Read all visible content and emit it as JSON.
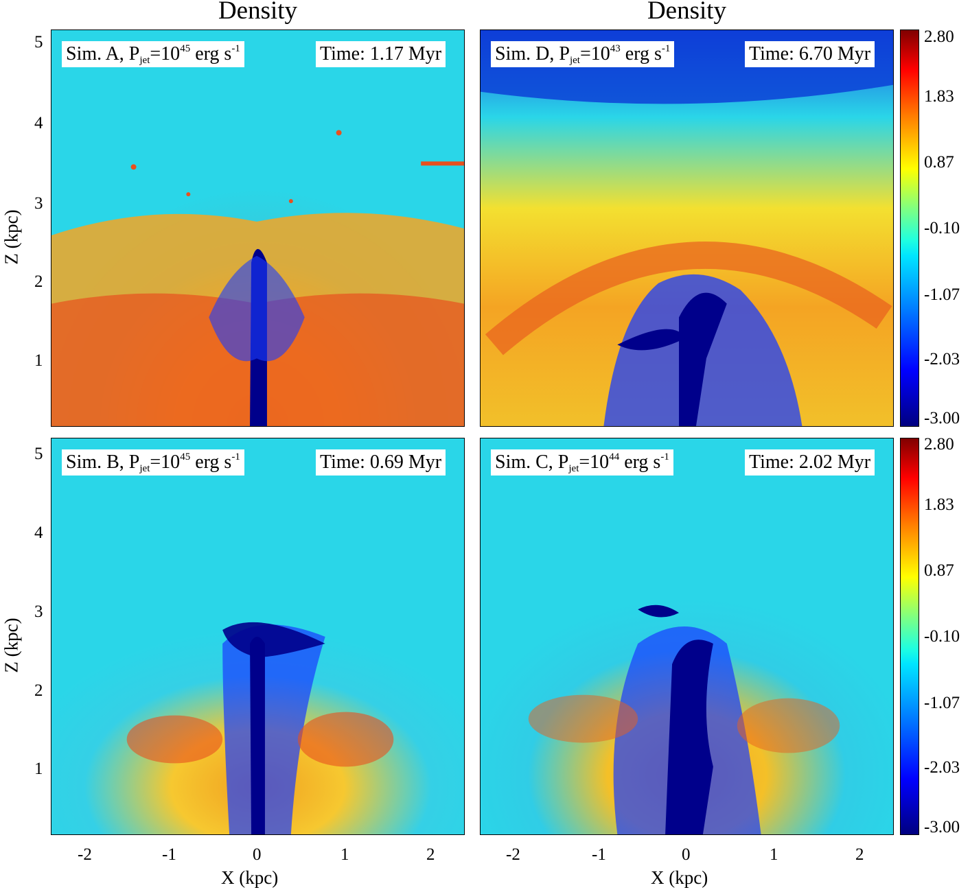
{
  "figure": {
    "column_titles": [
      "Density",
      "Density"
    ],
    "panels": [
      {
        "id": "A",
        "sim_prefix": "Sim. A, P",
        "sim_sub": "jet",
        "sim_mid": "=10",
        "sim_sup": "45",
        "sim_unit": " erg s",
        "sim_unit_sup": "-1",
        "time": "Time: 1.17 Myr"
      },
      {
        "id": "D",
        "sim_prefix": "Sim. D, P",
        "sim_sub": "jet",
        "sim_mid": "=10",
        "sim_sup": "43",
        "sim_unit": " erg s",
        "sim_unit_sup": "-1",
        "time": "Time: 6.70 Myr"
      },
      {
        "id": "B",
        "sim_prefix": "Sim. B, P",
        "sim_sub": "jet",
        "sim_mid": "=10",
        "sim_sup": "45",
        "sim_unit": " erg s",
        "sim_unit_sup": "-1",
        "time": "Time: 0.69 Myr"
      },
      {
        "id": "C",
        "sim_prefix": "Sim. C, P",
        "sim_sub": "jet",
        "sim_mid": "=10",
        "sim_sup": "44",
        "sim_unit": " erg s",
        "sim_unit_sup": "-1",
        "time": "Time: 2.02 Myr"
      }
    ],
    "y_axis": {
      "label": "Z (kpc)",
      "ticks": [
        "5",
        "4",
        "3",
        "2",
        "1"
      ]
    },
    "x_axis": {
      "label": "X (kpc)",
      "ticks": [
        "-2",
        "-1",
        "0",
        "1",
        "2"
      ]
    },
    "colorbar": {
      "ticks": [
        "2.80",
        "1.83",
        "0.87",
        "-0.10",
        "-1.07",
        "-2.03",
        "-3.00"
      ]
    },
    "colors": {
      "jet_cavity": "#00008b",
      "dense_gas": "#e8501e",
      "warm_gas": "#f5c026",
      "ambient": "#30d0e6"
    }
  }
}
